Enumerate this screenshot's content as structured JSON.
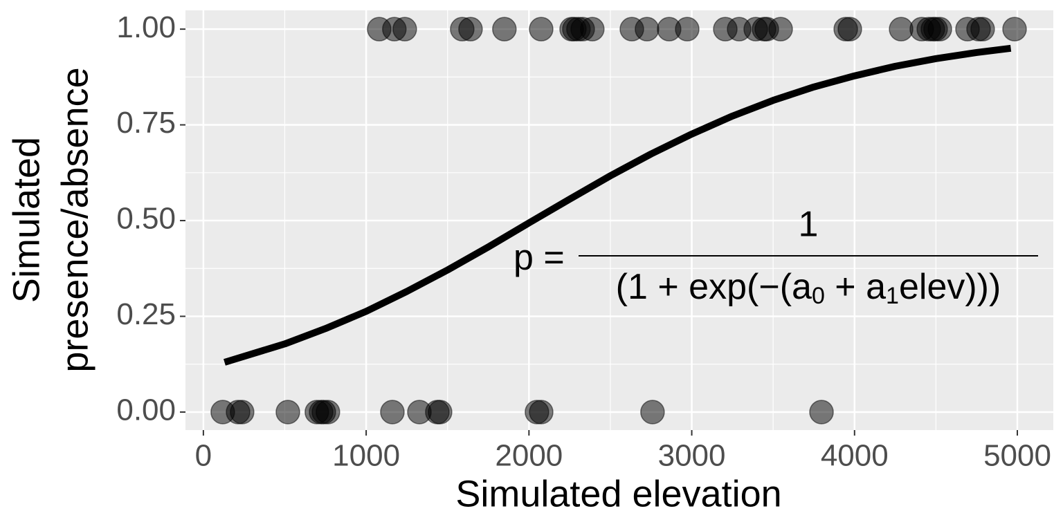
{
  "chart_data": {
    "type": "scatter",
    "xlabel": "Simulated elevation",
    "ylabel": [
      "Simulated",
      "presence/absence"
    ],
    "xlim": [
      -110,
      5221
    ],
    "ylim": [
      -0.047,
      1.049
    ],
    "xticks": [
      0,
      1000,
      2000,
      3000,
      4000,
      5000
    ],
    "yticks": [
      {
        "value": 0,
        "label": "0.00"
      },
      {
        "value": 0.25,
        "label": "0.25"
      },
      {
        "value": 0.5,
        "label": "0.50"
      },
      {
        "value": 0.75,
        "label": "0.75"
      },
      {
        "value": 1,
        "label": "1.00"
      }
    ],
    "grid": true,
    "background": "#ebebeb",
    "series": [
      {
        "kind": "points",
        "color": "#000000",
        "opacity": 0.5,
        "x": [
          1080,
          1173,
          1237,
          1590,
          1641,
          1849,
          2075,
          2262,
          2279,
          2304,
          2330,
          2389,
          2632,
          2725,
          2861,
          2972,
          3206,
          3291,
          3393,
          3444,
          3461,
          3546,
          3946,
          3971,
          4286,
          4413,
          4456,
          4481,
          4498,
          4524,
          4694,
          4762,
          4787,
          4983,
          119,
          213,
          238,
          519,
          697,
          723,
          740,
          765,
          1161,
          1327,
          1437,
          1454,
          2049,
          2075,
          2759,
          3797
        ],
        "values": [
          1,
          1,
          1,
          1,
          1,
          1,
          1,
          1,
          1,
          1,
          1,
          1,
          1,
          1,
          1,
          1,
          1,
          1,
          1,
          1,
          1,
          1,
          1,
          1,
          1,
          1,
          1,
          1,
          1,
          1,
          1,
          1,
          1,
          1,
          0,
          0,
          0,
          0,
          0,
          0,
          0,
          0,
          0,
          0,
          0,
          0,
          0,
          0,
          0,
          0
        ]
      },
      {
        "kind": "line",
        "color": "#000000",
        "x": [
          130,
          500,
          750,
          1000,
          1250,
          1500,
          1750,
          2000,
          2250,
          2500,
          2750,
          3000,
          3250,
          3500,
          3750,
          4000,
          4250,
          4500,
          4750,
          4960
        ],
        "values": [
          0.13,
          0.178,
          0.218,
          0.263,
          0.315,
          0.371,
          0.431,
          0.494,
          0.556,
          0.617,
          0.674,
          0.726,
          0.773,
          0.814,
          0.849,
          0.878,
          0.903,
          0.923,
          0.939,
          0.95
        ]
      }
    ],
    "annotation": {
      "lhs": "p =",
      "numerator": "1",
      "denominator": [
        "(1 + exp(−(a",
        "0",
        " + a",
        "1",
        "elev)))"
      ]
    }
  }
}
